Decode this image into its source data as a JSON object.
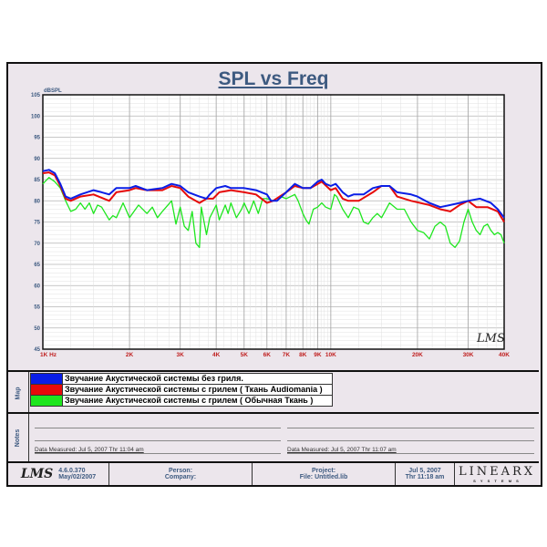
{
  "chart_data": {
    "type": "line",
    "title": "SPL vs Freq",
    "ylabel": "dBSPL",
    "xlabel": "",
    "xscale": "log",
    "xlim": [
      1000,
      40000
    ],
    "ylim": [
      45,
      105
    ],
    "yticks": [
      45,
      50,
      55,
      60,
      65,
      70,
      75,
      80,
      85,
      90,
      95,
      100,
      105
    ],
    "xticks": [
      {
        "v": 1000,
        "l": "1K  Hz"
      },
      {
        "v": 2000,
        "l": "2K"
      },
      {
        "v": 3000,
        "l": "3K"
      },
      {
        "v": 4000,
        "l": "4K"
      },
      {
        "v": 5000,
        "l": "5K"
      },
      {
        "v": 6000,
        "l": "6K"
      },
      {
        "v": 7000,
        "l": "7K"
      },
      {
        "v": 8000,
        "l": "8K"
      },
      {
        "v": 9000,
        "l": "9K"
      },
      {
        "v": 10000,
        "l": "10K"
      },
      {
        "v": 20000,
        "l": "20K"
      },
      {
        "v": 30000,
        "l": "30K"
      },
      {
        "v": 40000,
        "l": "40K"
      }
    ],
    "grid": true,
    "legend_position": "below",
    "series": [
      {
        "name": "Звучание Акустической системы без гриля.",
        "color": "#0a1ee6",
        "points": [
          [
            1000,
            87
          ],
          [
            1050,
            87.3
          ],
          [
            1100,
            86.5
          ],
          [
            1150,
            84
          ],
          [
            1200,
            81
          ],
          [
            1250,
            80.5
          ],
          [
            1350,
            81.5
          ],
          [
            1500,
            82.5
          ],
          [
            1600,
            82
          ],
          [
            1700,
            81.5
          ],
          [
            1800,
            83
          ],
          [
            2000,
            83
          ],
          [
            2100,
            83.5
          ],
          [
            2300,
            82.5
          ],
          [
            2600,
            83
          ],
          [
            2800,
            84
          ],
          [
            3000,
            83.5
          ],
          [
            3200,
            82
          ],
          [
            3500,
            81
          ],
          [
            3700,
            80.5
          ],
          [
            3800,
            81.5
          ],
          [
            4000,
            83
          ],
          [
            4300,
            83.5
          ],
          [
            4500,
            83
          ],
          [
            5000,
            83
          ],
          [
            5500,
            82.5
          ],
          [
            6000,
            81.5
          ],
          [
            6200,
            80
          ],
          [
            6500,
            80
          ],
          [
            7000,
            82
          ],
          [
            7500,
            84
          ],
          [
            8000,
            83
          ],
          [
            8500,
            83
          ],
          [
            9000,
            84.5
          ],
          [
            9300,
            85
          ],
          [
            9600,
            84
          ],
          [
            10000,
            83.5
          ],
          [
            10400,
            84
          ],
          [
            11000,
            82
          ],
          [
            11500,
            81
          ],
          [
            12000,
            81.5
          ],
          [
            13000,
            81.5
          ],
          [
            14000,
            83
          ],
          [
            15000,
            83.5
          ],
          [
            16000,
            83.5
          ],
          [
            17000,
            82
          ],
          [
            19000,
            81.5
          ],
          [
            20000,
            81
          ],
          [
            22000,
            79.5
          ],
          [
            24000,
            78.5
          ],
          [
            26000,
            79
          ],
          [
            28000,
            79.5
          ],
          [
            30000,
            80
          ],
          [
            33000,
            80.5
          ],
          [
            36000,
            79.5
          ],
          [
            38000,
            78
          ],
          [
            40000,
            76
          ]
        ]
      },
      {
        "name": "Звучание Акустической системы с грилем ( Ткань Audiomania )",
        "color": "#e60a0a",
        "points": [
          [
            1000,
            86.5
          ],
          [
            1050,
            86.7
          ],
          [
            1100,
            86
          ],
          [
            1150,
            83.5
          ],
          [
            1200,
            80.5
          ],
          [
            1250,
            80
          ],
          [
            1350,
            81
          ],
          [
            1500,
            81.5
          ],
          [
            1700,
            80
          ],
          [
            1800,
            82
          ],
          [
            2000,
            82.5
          ],
          [
            2100,
            83
          ],
          [
            2300,
            82.5
          ],
          [
            2600,
            82.5
          ],
          [
            2800,
            83.5
          ],
          [
            3000,
            83
          ],
          [
            3200,
            81
          ],
          [
            3500,
            79.5
          ],
          [
            3700,
            80.5
          ],
          [
            3900,
            80.5
          ],
          [
            4100,
            82
          ],
          [
            4500,
            82.5
          ],
          [
            5000,
            82
          ],
          [
            5500,
            81.5
          ],
          [
            6000,
            79.5
          ],
          [
            6300,
            80
          ],
          [
            7000,
            82
          ],
          [
            7500,
            83.5
          ],
          [
            8000,
            83
          ],
          [
            8500,
            83
          ],
          [
            9300,
            84.5
          ],
          [
            10000,
            82.5
          ],
          [
            10400,
            83
          ],
          [
            11000,
            80.5
          ],
          [
            11500,
            80
          ],
          [
            12500,
            80
          ],
          [
            14000,
            82
          ],
          [
            15000,
            83.5
          ],
          [
            16000,
            83.5
          ],
          [
            17000,
            81
          ],
          [
            19000,
            80
          ],
          [
            22000,
            79
          ],
          [
            24000,
            78
          ],
          [
            26000,
            77.5
          ],
          [
            28000,
            79
          ],
          [
            30000,
            80
          ],
          [
            32000,
            78.5
          ],
          [
            35000,
            78.5
          ],
          [
            38000,
            77.5
          ],
          [
            40000,
            75
          ]
        ]
      },
      {
        "name": "Звучание Акустической системы с грилем ( Обычная Ткань )",
        "color": "#1ee61e",
        "points": [
          [
            1000,
            84
          ],
          [
            1050,
            85.5
          ],
          [
            1100,
            84.5
          ],
          [
            1150,
            83
          ],
          [
            1200,
            80
          ],
          [
            1250,
            77.5
          ],
          [
            1300,
            78
          ],
          [
            1350,
            79.5
          ],
          [
            1400,
            78
          ],
          [
            1450,
            79.5
          ],
          [
            1500,
            77
          ],
          [
            1550,
            79
          ],
          [
            1600,
            78.5
          ],
          [
            1700,
            75.5
          ],
          [
            1750,
            76.5
          ],
          [
            1800,
            76
          ],
          [
            1900,
            79.5
          ],
          [
            2000,
            76
          ],
          [
            2150,
            79
          ],
          [
            2300,
            77
          ],
          [
            2400,
            78.5
          ],
          [
            2500,
            76
          ],
          [
            2600,
            77.5
          ],
          [
            2800,
            80
          ],
          [
            2900,
            74.5
          ],
          [
            3000,
            78.5
          ],
          [
            3100,
            74
          ],
          [
            3200,
            73
          ],
          [
            3300,
            77.5
          ],
          [
            3400,
            70
          ],
          [
            3500,
            69
          ],
          [
            3550,
            78.5
          ],
          [
            3700,
            72
          ],
          [
            3800,
            76
          ],
          [
            4000,
            79
          ],
          [
            4100,
            75.5
          ],
          [
            4300,
            79
          ],
          [
            4400,
            77
          ],
          [
            4500,
            79.5
          ],
          [
            4700,
            76
          ],
          [
            4900,
            78
          ],
          [
            5000,
            79.5
          ],
          [
            5200,
            77
          ],
          [
            5400,
            80
          ],
          [
            5600,
            77
          ],
          [
            5800,
            80.5
          ],
          [
            6000,
            80.5
          ],
          [
            6300,
            80
          ],
          [
            6700,
            81
          ],
          [
            7000,
            80.5
          ],
          [
            7500,
            81.5
          ],
          [
            7700,
            80
          ],
          [
            8000,
            77
          ],
          [
            8200,
            75.5
          ],
          [
            8400,
            74.5
          ],
          [
            8700,
            78
          ],
          [
            9000,
            78.5
          ],
          [
            9300,
            79.5
          ],
          [
            9600,
            78.5
          ],
          [
            10000,
            78
          ],
          [
            10300,
            81.5
          ],
          [
            10500,
            81
          ],
          [
            11000,
            78
          ],
          [
            11500,
            76
          ],
          [
            12000,
            78.5
          ],
          [
            12500,
            78
          ],
          [
            13000,
            75
          ],
          [
            13500,
            74.5
          ],
          [
            14000,
            76
          ],
          [
            14500,
            77
          ],
          [
            15000,
            76
          ],
          [
            16000,
            79.5
          ],
          [
            17000,
            78
          ],
          [
            18000,
            78
          ],
          [
            19000,
            75
          ],
          [
            20000,
            73
          ],
          [
            21000,
            72.5
          ],
          [
            22000,
            71
          ],
          [
            23000,
            74
          ],
          [
            24000,
            75
          ],
          [
            25000,
            74
          ],
          [
            26000,
            70
          ],
          [
            27000,
            69
          ],
          [
            28000,
            70.5
          ],
          [
            29000,
            75
          ],
          [
            30000,
            78
          ],
          [
            31000,
            75
          ],
          [
            32000,
            73
          ],
          [
            33000,
            72
          ],
          [
            34000,
            74
          ],
          [
            35000,
            74.5
          ],
          [
            36000,
            73
          ],
          [
            37000,
            72
          ],
          [
            38000,
            72.5
          ],
          [
            39000,
            72
          ],
          [
            40000,
            70
          ]
        ]
      }
    ]
  },
  "watermark": "LMS",
  "sections": {
    "map": "Map",
    "notes": "Notes"
  },
  "notes": {
    "left_measured": "Data Measured: Jul  5, 2007  Thr 11:04 am",
    "right_measured": "Data Measured: Jul  5, 2007  Thr 11:07 am"
  },
  "footer": {
    "logo": "LMS",
    "version": "4.6.0.370",
    "version_date": "May/02/2007",
    "person": "Person:",
    "company": "Company:",
    "project": "Project:",
    "file": "File: Untitled.lib",
    "date": "Jul  5, 2007",
    "time": "Thr 11:18 am",
    "brand": "LINEARX",
    "brand_sub": "S Y S T E M S"
  }
}
